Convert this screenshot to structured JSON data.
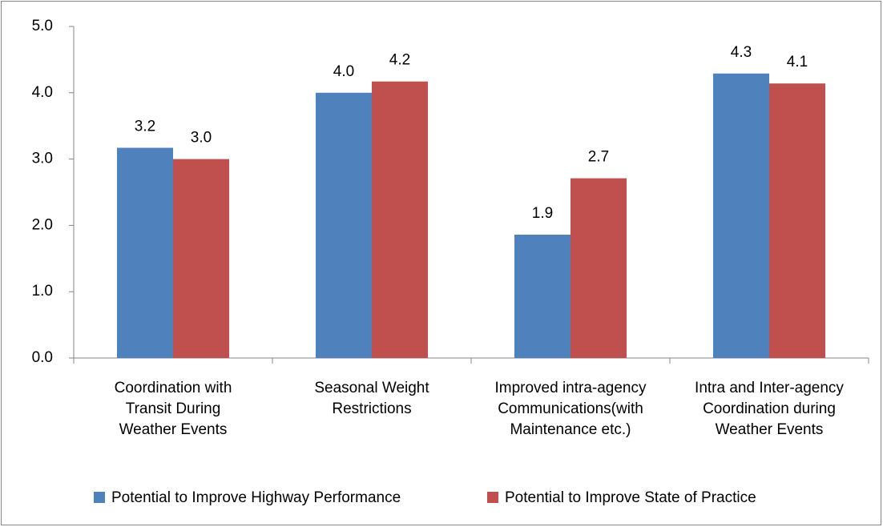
{
  "chart_data": {
    "type": "bar",
    "categories": [
      "Coordination with\nTransit During\nWeather Events",
      "Seasonal Weight\nRestrictions",
      "Improved intra-agency\nCommunications(with\nMaintenance etc.)",
      "Intra and Inter-agency\nCoordination during\nWeather Events"
    ],
    "series": [
      {
        "name": "Potential to Improve Highway Performance",
        "color": "#4f81bd",
        "values": [
          3.17,
          4.0,
          1.86,
          4.29
        ],
        "value_labels": [
          "3.2",
          "4.0",
          "1.9",
          "4.3"
        ]
      },
      {
        "name": "Potential to Improve State of Practice",
        "color": "#c0504d",
        "values": [
          3.0,
          4.17,
          2.71,
          4.14
        ],
        "value_labels": [
          "3.0",
          "4.2",
          "2.7",
          "4.1"
        ]
      }
    ],
    "ylim": [
      0,
      5
    ],
    "yticks": [
      {
        "value": 0,
        "label": "0.0"
      },
      {
        "value": 1,
        "label": "1.0"
      },
      {
        "value": 2,
        "label": "2.0"
      },
      {
        "value": 3,
        "label": "3.0"
      },
      {
        "value": 4,
        "label": "4.0"
      },
      {
        "value": 5,
        "label": "5.0"
      }
    ],
    "legend": "bottom"
  }
}
